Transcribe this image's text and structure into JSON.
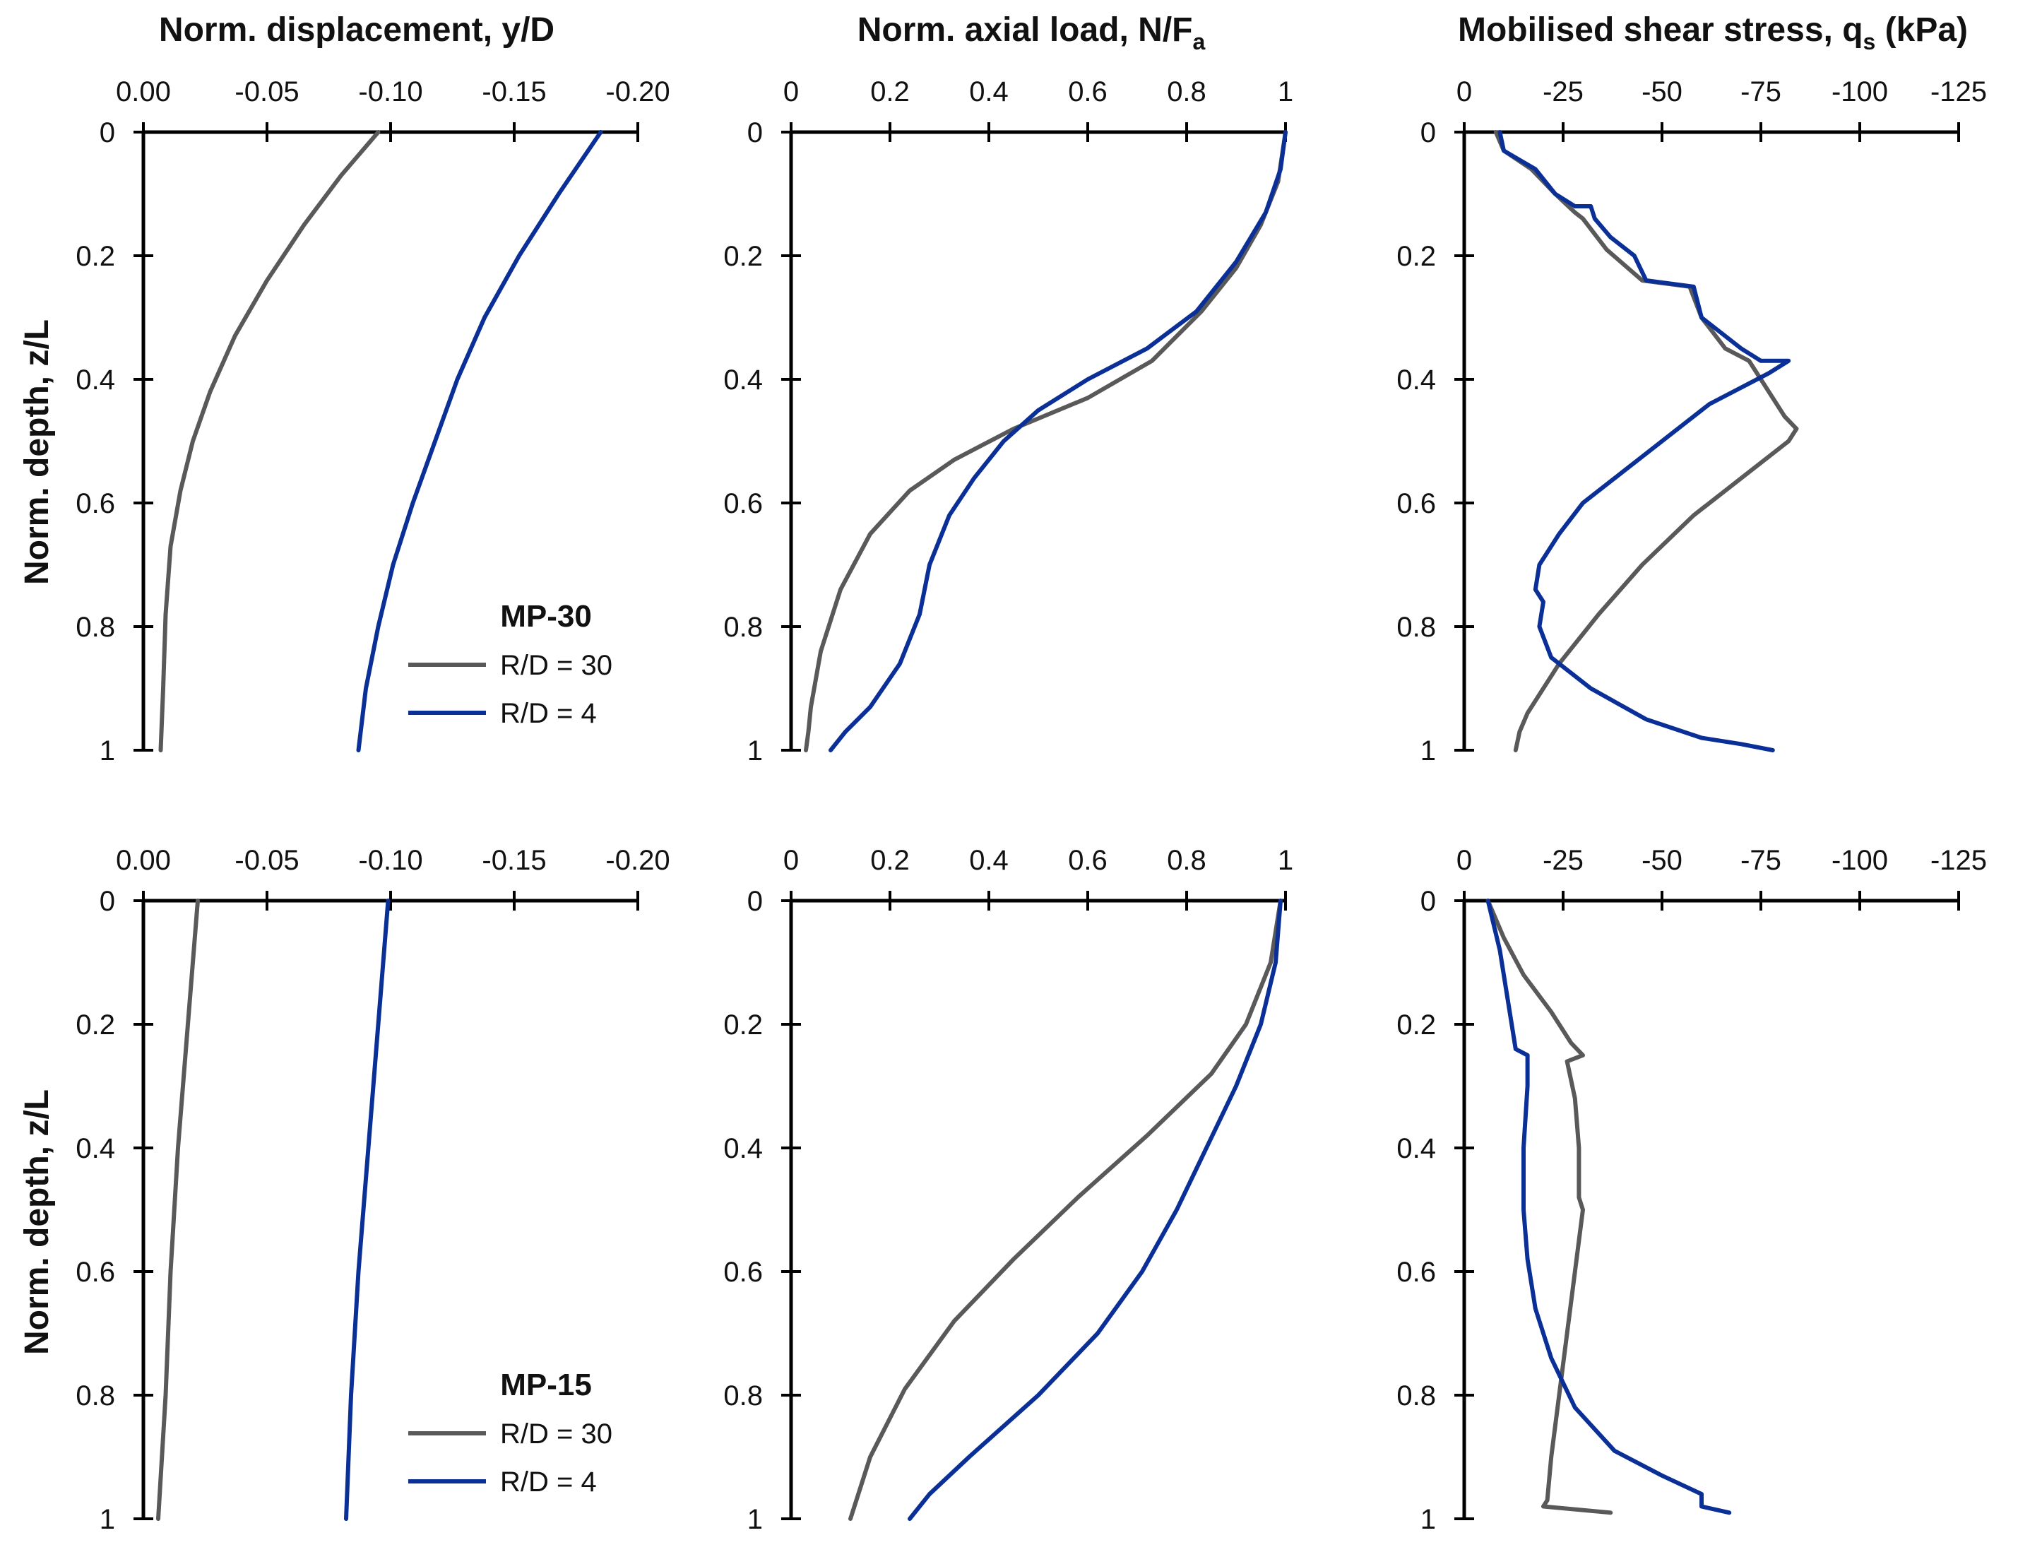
{
  "column_titles": {
    "displacement": "Norm. displacement, y/D",
    "axial_main": "Norm. axial load, N/F",
    "axial_sub": "a",
    "shear_main": "Mobilised shear stress, q",
    "shear_sub": "s",
    "shear_unit": " (kPa)"
  },
  "y_axis_title": "Norm. depth, z/L",
  "colors": {
    "rd30": "#595959",
    "rd4": "#0a2f96",
    "axis": "#000000"
  },
  "chart_data": [
    {
      "id": "mp30-displacement",
      "row": 0,
      "col": 0,
      "type": "line",
      "xlim": [
        0,
        -0.2
      ],
      "ylim": [
        0,
        1
      ],
      "xticks": [
        0,
        -0.05,
        -0.1,
        -0.15,
        -0.2
      ],
      "xtick_labels": [
        "0.00",
        "-0.05",
        "-0.10",
        "-0.15",
        "-0.20"
      ],
      "yticks": [
        0,
        0.2,
        0.4,
        0.6,
        0.8,
        1
      ],
      "ytick_labels": [
        "0",
        "0.2",
        "0.4",
        "0.6",
        "0.8",
        "1"
      ],
      "xlabel": "Norm. displacement, y/D",
      "ylabel": "Norm. depth, z/L",
      "legend": {
        "title": "MP-30",
        "entries": [
          "R/D = 30",
          "R/D = 4"
        ],
        "location": "bottom-right"
      },
      "series": [
        {
          "name": "R/D = 30",
          "color_key": "rd30",
          "points": [
            [
              -0.095,
              0
            ],
            [
              -0.08,
              0.07
            ],
            [
              -0.065,
              0.15
            ],
            [
              -0.05,
              0.24
            ],
            [
              -0.037,
              0.33
            ],
            [
              -0.027,
              0.42
            ],
            [
              -0.02,
              0.5
            ],
            [
              -0.015,
              0.58
            ],
            [
              -0.011,
              0.67
            ],
            [
              -0.009,
              0.78
            ],
            [
              -0.008,
              0.9
            ],
            [
              -0.007,
              1.0
            ]
          ]
        },
        {
          "name": "R/D = 4",
          "color_key": "rd4",
          "points": [
            [
              -0.185,
              0
            ],
            [
              -0.168,
              0.1
            ],
            [
              -0.152,
              0.2
            ],
            [
              -0.138,
              0.3
            ],
            [
              -0.127,
              0.4
            ],
            [
              -0.118,
              0.5
            ],
            [
              -0.109,
              0.6
            ],
            [
              -0.101,
              0.7
            ],
            [
              -0.095,
              0.8
            ],
            [
              -0.09,
              0.9
            ],
            [
              -0.087,
              1.0
            ]
          ]
        }
      ]
    },
    {
      "id": "mp30-axial",
      "row": 0,
      "col": 1,
      "type": "line",
      "xlim": [
        0,
        1
      ],
      "ylim": [
        0,
        1
      ],
      "xticks": [
        0,
        0.2,
        0.4,
        0.6,
        0.8,
        1
      ],
      "xtick_labels": [
        "0",
        "0.2",
        "0.4",
        "0.6",
        "0.8",
        "1"
      ],
      "yticks": [
        0,
        0.2,
        0.4,
        0.6,
        0.8,
        1
      ],
      "ytick_labels": [
        "0",
        "0.2",
        "0.4",
        "0.6",
        "0.8",
        "1"
      ],
      "xlabel": "Norm. axial load, N/Fa",
      "ylabel": "",
      "series": [
        {
          "name": "R/D = 30",
          "color_key": "rd30",
          "points": [
            [
              1.0,
              0
            ],
            [
              0.985,
              0.08
            ],
            [
              0.95,
              0.15
            ],
            [
              0.9,
              0.22
            ],
            [
              0.83,
              0.29
            ],
            [
              0.73,
              0.37
            ],
            [
              0.6,
              0.43
            ],
            [
              0.45,
              0.48
            ],
            [
              0.33,
              0.53
            ],
            [
              0.24,
              0.58
            ],
            [
              0.16,
              0.65
            ],
            [
              0.1,
              0.74
            ],
            [
              0.06,
              0.84
            ],
            [
              0.04,
              0.93
            ],
            [
              0.035,
              0.97
            ],
            [
              0.03,
              1.0
            ]
          ]
        },
        {
          "name": "R/D = 4",
          "color_key": "rd4",
          "points": [
            [
              1.0,
              0
            ],
            [
              0.99,
              0.06
            ],
            [
              0.96,
              0.13
            ],
            [
              0.9,
              0.21
            ],
            [
              0.82,
              0.29
            ],
            [
              0.72,
              0.35
            ],
            [
              0.6,
              0.4
            ],
            [
              0.5,
              0.45
            ],
            [
              0.43,
              0.5
            ],
            [
              0.37,
              0.56
            ],
            [
              0.32,
              0.62
            ],
            [
              0.28,
              0.7
            ],
            [
              0.26,
              0.78
            ],
            [
              0.22,
              0.86
            ],
            [
              0.16,
              0.93
            ],
            [
              0.11,
              0.97
            ],
            [
              0.08,
              1.0
            ]
          ]
        }
      ]
    },
    {
      "id": "mp30-shear",
      "row": 0,
      "col": 2,
      "type": "line",
      "xlim": [
        0,
        -125
      ],
      "ylim": [
        0,
        1
      ],
      "xticks": [
        0,
        -25,
        -50,
        -75,
        -100,
        -125
      ],
      "xtick_labels": [
        "0",
        "-25",
        "-50",
        "-75",
        "-100",
        "-125"
      ],
      "yticks": [
        0,
        0.2,
        0.4,
        0.6,
        0.8,
        1
      ],
      "ytick_labels": [
        "0",
        "0.2",
        "0.4",
        "0.6",
        "0.8",
        "1"
      ],
      "xlabel": "Mobilised shear stress, qs (kPa)",
      "ylabel": "",
      "series": [
        {
          "name": "R/D = 30",
          "color_key": "rd30",
          "points": [
            [
              -8,
              0
            ],
            [
              -10,
              0.03
            ],
            [
              -17,
              0.06
            ],
            [
              -23,
              0.1
            ],
            [
              -28,
              0.13
            ],
            [
              -30,
              0.14
            ],
            [
              -36,
              0.19
            ],
            [
              -45,
              0.24
            ],
            [
              -57,
              0.25
            ],
            [
              -60,
              0.3
            ],
            [
              -66,
              0.35
            ],
            [
              -72,
              0.37
            ],
            [
              -76,
              0.41
            ],
            [
              -81,
              0.46
            ],
            [
              -84,
              0.48
            ],
            [
              -82,
              0.5
            ],
            [
              -72,
              0.55
            ],
            [
              -58,
              0.62
            ],
            [
              -45,
              0.7
            ],
            [
              -34,
              0.78
            ],
            [
              -24,
              0.86
            ],
            [
              -16,
              0.94
            ],
            [
              -14,
              0.97
            ],
            [
              -13,
              1.0
            ]
          ]
        },
        {
          "name": "R/D = 4",
          "color_key": "rd4",
          "points": [
            [
              -9,
              0
            ],
            [
              -10,
              0.03
            ],
            [
              -18,
              0.06
            ],
            [
              -23,
              0.1
            ],
            [
              -28,
              0.12
            ],
            [
              -32,
              0.12
            ],
            [
              -33,
              0.14
            ],
            [
              -37,
              0.17
            ],
            [
              -43,
              0.2
            ],
            [
              -46,
              0.24
            ],
            [
              -58,
              0.25
            ],
            [
              -60,
              0.3
            ],
            [
              -70,
              0.35
            ],
            [
              -75,
              0.37
            ],
            [
              -82,
              0.37
            ],
            [
              -77,
              0.39
            ],
            [
              -62,
              0.44
            ],
            [
              -50,
              0.5
            ],
            [
              -40,
              0.55
            ],
            [
              -30,
              0.6
            ],
            [
              -24,
              0.65
            ],
            [
              -19,
              0.7
            ],
            [
              -18,
              0.74
            ],
            [
              -20,
              0.76
            ],
            [
              -19,
              0.8
            ],
            [
              -22,
              0.85
            ],
            [
              -32,
              0.9
            ],
            [
              -46,
              0.95
            ],
            [
              -60,
              0.98
            ],
            [
              -70,
              0.99
            ],
            [
              -78,
              1.0
            ]
          ]
        }
      ]
    },
    {
      "id": "mp15-displacement",
      "row": 1,
      "col": 0,
      "type": "line",
      "xlim": [
        0,
        -0.2
      ],
      "ylim": [
        0,
        1
      ],
      "xticks": [
        0,
        -0.05,
        -0.1,
        -0.15,
        -0.2
      ],
      "xtick_labels": [
        "0.00",
        "-0.05",
        "-0.10",
        "-0.15",
        "-0.20"
      ],
      "yticks": [
        0,
        0.2,
        0.4,
        0.6,
        0.8,
        1
      ],
      "ytick_labels": [
        "0",
        "0.2",
        "0.4",
        "0.6",
        "0.8",
        "1"
      ],
      "xlabel": "Norm. displacement, y/D",
      "ylabel": "Norm. depth, z/L",
      "legend": {
        "title": "MP-15",
        "entries": [
          "R/D = 30",
          "R/D = 4"
        ],
        "location": "bottom-right"
      },
      "series": [
        {
          "name": "R/D = 30",
          "color_key": "rd30",
          "points": [
            [
              -0.022,
              0
            ],
            [
              -0.018,
              0.2
            ],
            [
              -0.014,
              0.4
            ],
            [
              -0.011,
              0.6
            ],
            [
              -0.009,
              0.8
            ],
            [
              -0.006,
              1.0
            ]
          ]
        },
        {
          "name": "R/D = 4",
          "color_key": "rd4",
          "points": [
            [
              -0.099,
              0
            ],
            [
              -0.095,
              0.2
            ],
            [
              -0.091,
              0.4
            ],
            [
              -0.087,
              0.6
            ],
            [
              -0.084,
              0.8
            ],
            [
              -0.082,
              1.0
            ]
          ]
        }
      ]
    },
    {
      "id": "mp15-axial",
      "row": 1,
      "col": 1,
      "type": "line",
      "xlim": [
        0,
        1
      ],
      "ylim": [
        0,
        1
      ],
      "xticks": [
        0,
        0.2,
        0.4,
        0.6,
        0.8,
        1
      ],
      "xtick_labels": [
        "0",
        "0.2",
        "0.4",
        "0.6",
        "0.8",
        "1"
      ],
      "yticks": [
        0,
        0.2,
        0.4,
        0.6,
        0.8,
        1
      ],
      "ytick_labels": [
        "0",
        "0.2",
        "0.4",
        "0.6",
        "0.8",
        "1"
      ],
      "xlabel": "Norm. axial load, N/Fa",
      "ylabel": "",
      "series": [
        {
          "name": "R/D = 30",
          "color_key": "rd30",
          "points": [
            [
              0.99,
              0
            ],
            [
              0.97,
              0.1
            ],
            [
              0.92,
              0.2
            ],
            [
              0.85,
              0.28
            ],
            [
              0.72,
              0.38
            ],
            [
              0.58,
              0.48
            ],
            [
              0.45,
              0.58
            ],
            [
              0.33,
              0.68
            ],
            [
              0.23,
              0.79
            ],
            [
              0.16,
              0.9
            ],
            [
              0.14,
              0.95
            ],
            [
              0.12,
              1.0
            ]
          ]
        },
        {
          "name": "R/D = 4",
          "color_key": "rd4",
          "points": [
            [
              0.99,
              0
            ],
            [
              0.98,
              0.1
            ],
            [
              0.95,
              0.2
            ],
            [
              0.9,
              0.3
            ],
            [
              0.84,
              0.4
            ],
            [
              0.78,
              0.5
            ],
            [
              0.71,
              0.6
            ],
            [
              0.62,
              0.7
            ],
            [
              0.5,
              0.8
            ],
            [
              0.36,
              0.9
            ],
            [
              0.28,
              0.96
            ],
            [
              0.24,
              1.0
            ]
          ]
        }
      ]
    },
    {
      "id": "mp15-shear",
      "row": 1,
      "col": 2,
      "type": "line",
      "xlim": [
        0,
        -125
      ],
      "ylim": [
        0,
        1
      ],
      "xticks": [
        0,
        -25,
        -50,
        -75,
        -100,
        -125
      ],
      "xtick_labels": [
        "0",
        "-25",
        "-50",
        "-75",
        "-100",
        "-125"
      ],
      "yticks": [
        0,
        0.2,
        0.4,
        0.6,
        0.8,
        1
      ],
      "ytick_labels": [
        "0",
        "0.2",
        "0.4",
        "0.6",
        "0.8",
        "1"
      ],
      "xlabel": "Mobilised shear stress, qs (kPa)",
      "ylabel": "",
      "series": [
        {
          "name": "R/D = 30",
          "color_key": "rd30",
          "points": [
            [
              -6,
              0
            ],
            [
              -10,
              0.06
            ],
            [
              -15,
              0.12
            ],
            [
              -22,
              0.18
            ],
            [
              -27,
              0.23
            ],
            [
              -30,
              0.25
            ],
            [
              -26,
              0.26
            ],
            [
              -28,
              0.32
            ],
            [
              -29,
              0.4
            ],
            [
              -29,
              0.48
            ],
            [
              -30,
              0.5
            ],
            [
              -28,
              0.6
            ],
            [
              -26,
              0.7
            ],
            [
              -24,
              0.8
            ],
            [
              -22,
              0.9
            ],
            [
              -21,
              0.97
            ],
            [
              -20,
              0.98
            ],
            [
              -37,
              0.99
            ]
          ]
        },
        {
          "name": "R/D = 4",
          "color_key": "rd4",
          "points": [
            [
              -6,
              0
            ],
            [
              -9,
              0.08
            ],
            [
              -11,
              0.16
            ],
            [
              -13,
              0.24
            ],
            [
              -16,
              0.25
            ],
            [
              -16,
              0.3
            ],
            [
              -15,
              0.4
            ],
            [
              -15,
              0.5
            ],
            [
              -16,
              0.58
            ],
            [
              -18,
              0.66
            ],
            [
              -22,
              0.74
            ],
            [
              -28,
              0.82
            ],
            [
              -38,
              0.89
            ],
            [
              -50,
              0.93
            ],
            [
              -60,
              0.96
            ],
            [
              -60,
              0.98
            ],
            [
              -67,
              0.99
            ]
          ]
        }
      ]
    }
  ]
}
